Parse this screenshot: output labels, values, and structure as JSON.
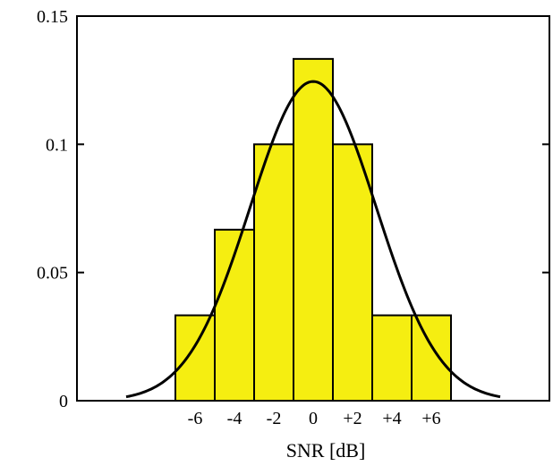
{
  "chart_data": {
    "type": "bar",
    "title": "",
    "xlabel": "SNR [dB]",
    "ylabel": "",
    "xlim": [
      -12,
      12
    ],
    "ylim": [
      0,
      0.15
    ],
    "x_tick_labels": [
      {
        "x": -6,
        "label": "-6"
      },
      {
        "x": -4,
        "label": "-4"
      },
      {
        "x": -2,
        "label": "-2"
      },
      {
        "x": 0,
        "label": "0"
      },
      {
        "x": 2,
        "label": "+2"
      },
      {
        "x": 4,
        "label": "+4"
      },
      {
        "x": 6,
        "label": "+6"
      }
    ],
    "y_ticks": [
      {
        "y": 0,
        "label": "0"
      },
      {
        "y": 0.05,
        "label": "0.05"
      },
      {
        "y": 0.1,
        "label": "0.1"
      },
      {
        "y": 0.15,
        "label": "0.15"
      }
    ],
    "bin_width": 2,
    "bars": [
      {
        "x": -6,
        "value": 0.0333
      },
      {
        "x": -4,
        "value": 0.0667
      },
      {
        "x": -2,
        "value": 0.1
      },
      {
        "x": 0,
        "value": 0.1333
      },
      {
        "x": 2,
        "value": 0.1
      },
      {
        "x": 4,
        "value": 0.0333
      },
      {
        "x": 6,
        "value": 0.0333
      }
    ],
    "fit_curve": {
      "type": "gaussian",
      "mean": 0,
      "std": 3.2,
      "peak": 0.1245
    },
    "grid": false,
    "colors": {
      "bar_fill": "#f5ee11",
      "bar_edge": "#000000",
      "curve": "#000000"
    }
  }
}
